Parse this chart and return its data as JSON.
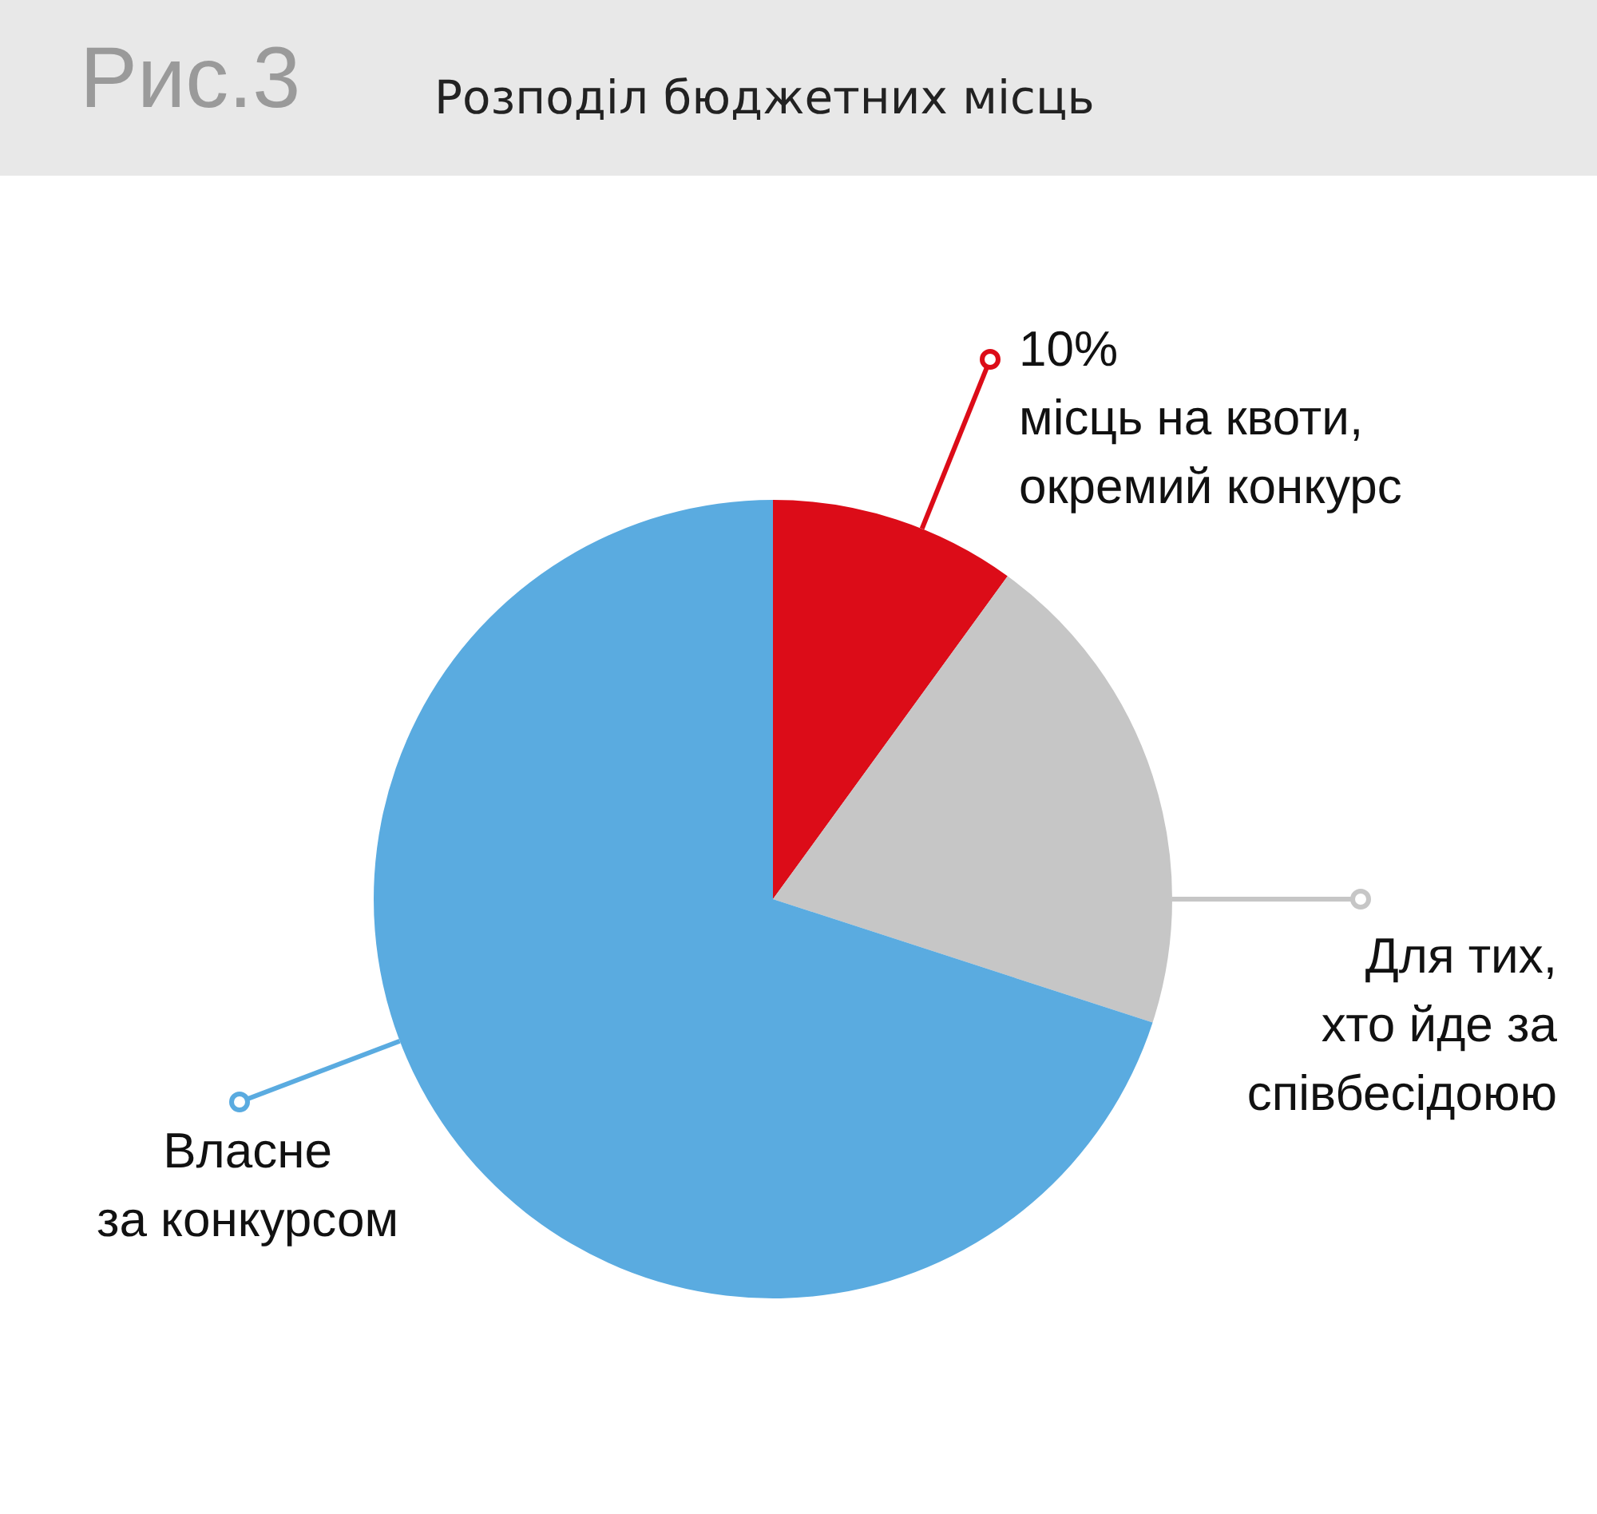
{
  "chart_data": {
    "type": "pie",
    "title": "Рис.3",
    "subtitle": "Розподіл бюджетних місць",
    "categories": [
      "місць на квоти,\nокремий конкурс",
      "Для тих,\nхто йде за\nспівбесідоюю",
      "Власне\nза конкурсом"
    ],
    "values": [
      10,
      20,
      70
    ],
    "value_labels": [
      "10%",
      null,
      null
    ],
    "colors": [
      "#dc0c18",
      "#c6c6c6",
      "#5aabe0"
    ],
    "legend": "right"
  }
}
